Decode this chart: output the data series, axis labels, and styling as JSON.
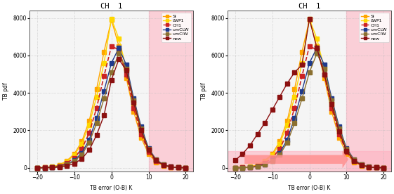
{
  "title": "CH  1",
  "xlabel": "TB error (O-B) K",
  "ylabel": "TB pdf",
  "xlim": [
    -22,
    22
  ],
  "ylim": [
    -200,
    8400
  ],
  "yticks": [
    0,
    2000,
    4000,
    6000,
    8000
  ],
  "xticks": [
    -20,
    -10,
    0,
    10,
    20
  ],
  "x": [
    -20,
    -18,
    -16,
    -14,
    -12,
    -10,
    -8,
    -6,
    -4,
    -2,
    0,
    2,
    4,
    6,
    8,
    10,
    12,
    14,
    16,
    18,
    20
  ],
  "series1": {
    "SI": [
      5,
      20,
      60,
      160,
      380,
      750,
      1400,
      2500,
      4200,
      6200,
      7900,
      6500,
      4800,
      3000,
      1600,
      750,
      300,
      120,
      40,
      12,
      3
    ],
    "LWP1": [
      5,
      18,
      55,
      145,
      340,
      680,
      1280,
      2280,
      3800,
      5600,
      7950,
      6900,
      5300,
      3400,
      1900,
      900,
      380,
      140,
      48,
      14,
      4
    ],
    "CH1": [
      3,
      12,
      38,
      105,
      260,
      530,
      1010,
      1850,
      3200,
      4900,
      6500,
      6300,
      5000,
      3200,
      1800,
      850,
      350,
      130,
      44,
      13,
      3
    ],
    "umCLW": [
      2,
      8,
      25,
      72,
      190,
      400,
      790,
      1500,
      2650,
      4100,
      5600,
      6400,
      5500,
      3700,
      2200,
      1050,
      450,
      170,
      56,
      16,
      4
    ],
    "umCIW": [
      2,
      7,
      22,
      64,
      168,
      355,
      700,
      1340,
      2380,
      3700,
      5100,
      6100,
      5300,
      3600,
      2100,
      1000,
      430,
      163,
      53,
      15,
      4
    ],
    "new": [
      1,
      4,
      13,
      38,
      105,
      230,
      480,
      950,
      1750,
      2800,
      4700,
      5800,
      5200,
      3500,
      2000,
      950,
      400,
      150,
      50,
      14,
      3
    ]
  },
  "series2": {
    "SI": [
      5,
      20,
      60,
      160,
      380,
      750,
      1400,
      2500,
      4200,
      6200,
      7900,
      6500,
      4800,
      3000,
      1600,
      750,
      300,
      120,
      40,
      12,
      3
    ],
    "LWP1": [
      5,
      18,
      55,
      145,
      340,
      680,
      1280,
      2280,
      3800,
      5600,
      7950,
      6900,
      5300,
      3400,
      1900,
      900,
      380,
      140,
      48,
      14,
      4
    ],
    "CH1": [
      3,
      12,
      38,
      105,
      260,
      530,
      1010,
      1850,
      3200,
      4900,
      6500,
      6300,
      5000,
      3200,
      1800,
      850,
      350,
      130,
      44,
      13,
      3
    ],
    "umCLW": [
      2,
      8,
      25,
      72,
      190,
      400,
      790,
      1500,
      2650,
      4100,
      5600,
      6400,
      5500,
      3700,
      2200,
      1050,
      450,
      170,
      56,
      16,
      4
    ],
    "umCIW": [
      2,
      7,
      22,
      64,
      168,
      355,
      700,
      1340,
      2380,
      3700,
      5100,
      6100,
      5300,
      3600,
      2100,
      1000,
      430,
      163,
      53,
      15,
      4
    ],
    "new": [
      400,
      750,
      1200,
      1800,
      2400,
      3100,
      3800,
      4500,
      5100,
      5500,
      7950,
      6400,
      5000,
      3400,
      1950,
      900,
      380,
      145,
      48,
      14,
      4
    ]
  },
  "colors": {
    "SI": "#FFA500",
    "LWP1": "#FFD700",
    "CH1": "#CC2222",
    "umCLW": "#1F3A8C",
    "umCIW": "#8B7030",
    "new": "#8B1010"
  },
  "legend_order": [
    "SI",
    "LWP1",
    "CH1",
    "umCLW",
    "umCIW",
    "new"
  ],
  "pink_fill": "#FFB0C0",
  "pink_alpha": 0.55,
  "arrow_color": "#FF9090",
  "bg_color": "#FFFFFF",
  "plot_bg": "#F5F5F5"
}
